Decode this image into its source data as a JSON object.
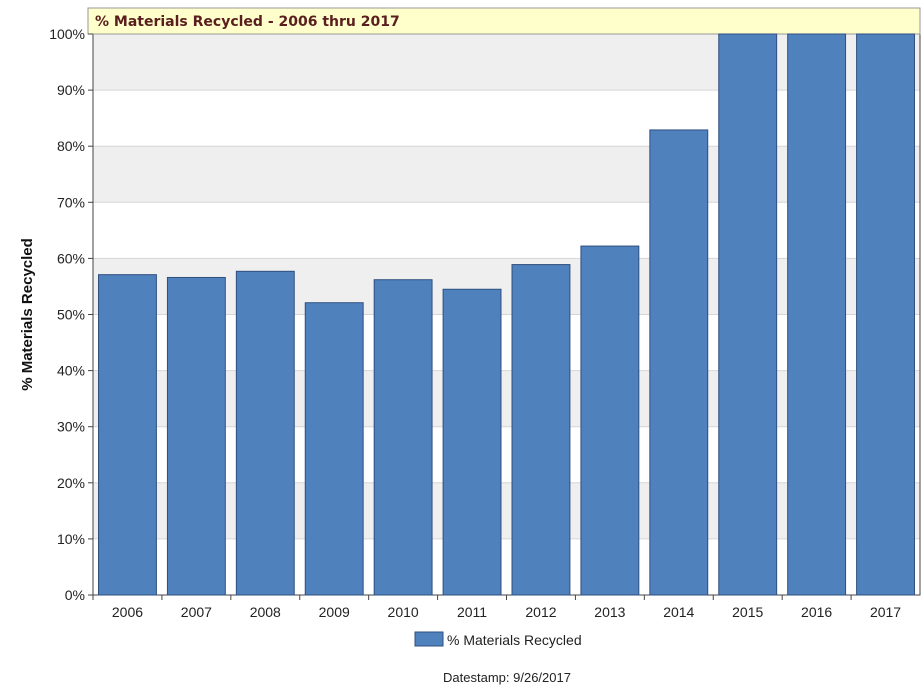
{
  "chart_data": {
    "type": "bar",
    "title": "% Materials Recycled - 2006 thru 2017",
    "xlabel": "",
    "ylabel": "% Materials Recycled",
    "categories": [
      "2006",
      "2007",
      "2008",
      "2009",
      "2010",
      "2011",
      "2012",
      "2013",
      "2014",
      "2015",
      "2016",
      "2017"
    ],
    "series": [
      {
        "name": "% Materials Recycled",
        "values": [
          57.1,
          56.6,
          57.7,
          52.1,
          56.2,
          54.5,
          58.9,
          62.2,
          82.9,
          100,
          100,
          100
        ]
      }
    ],
    "ylim": [
      0,
      100
    ],
    "yticks": [
      "0%",
      "10%",
      "20%",
      "30%",
      "40%",
      "50%",
      "60%",
      "70%",
      "80%",
      "90%",
      "100%"
    ],
    "grid": true,
    "legend": "bottom-center",
    "colors": {
      "bar": "#4f81bd",
      "bar_border": "#2f4f7f",
      "title_bg": "#ffffcc",
      "band": "#efefef"
    }
  },
  "footer": {
    "datestamp": "Datestamp: 9/26/2017"
  }
}
